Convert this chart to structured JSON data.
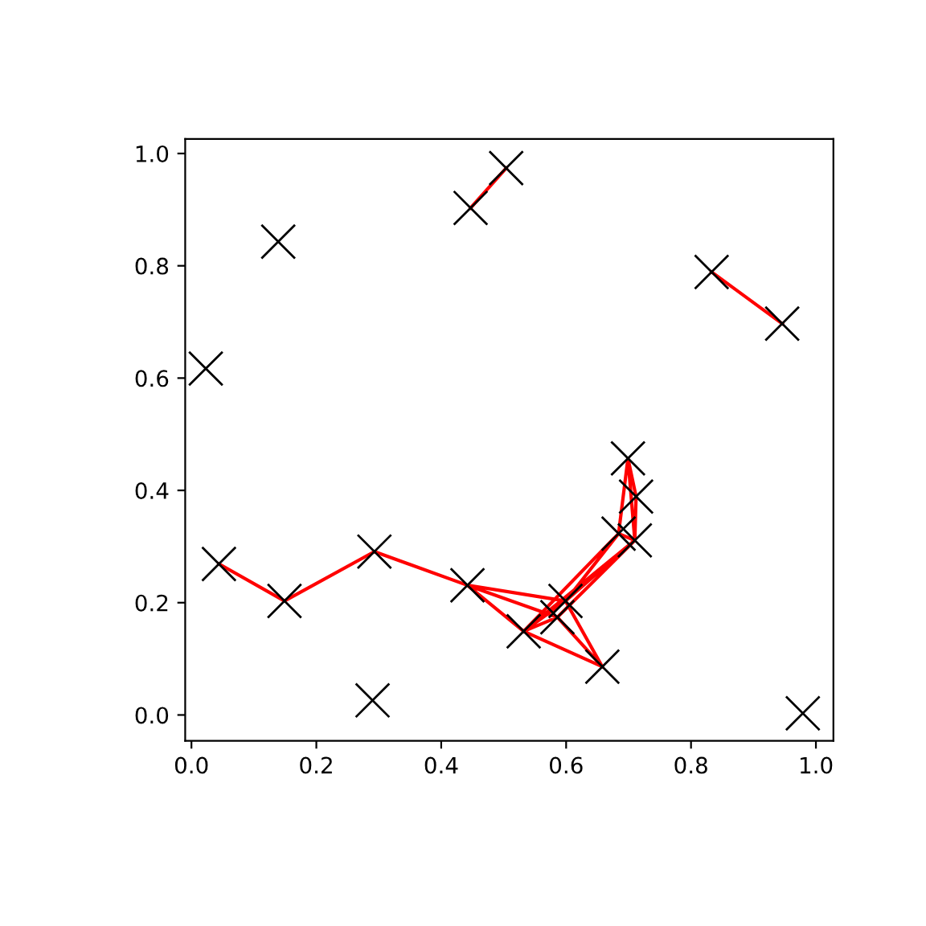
{
  "chart_data": {
    "type": "scatter",
    "xlim": [
      -0.01,
      1.028
    ],
    "ylim": [
      -0.046,
      1.026
    ],
    "xticks": [
      {
        "value": 0,
        "label": "0.0"
      },
      {
        "value": 0.2,
        "label": "0.2"
      },
      {
        "value": 0.4,
        "label": "0.4"
      },
      {
        "value": 0.6,
        "label": "0.6"
      },
      {
        "value": 0.8,
        "label": "0.8"
      },
      {
        "value": 1,
        "label": "1.0"
      }
    ],
    "yticks": [
      {
        "value": 0,
        "label": "0.0"
      },
      {
        "value": 0.2,
        "label": "0.2"
      },
      {
        "value": 0.4,
        "label": "0.4"
      },
      {
        "value": 0.6,
        "label": "0.6"
      },
      {
        "value": 0.8,
        "label": "0.8"
      },
      {
        "value": 1,
        "label": "1.0"
      }
    ],
    "grid": false,
    "legend": false,
    "series": [
      {
        "type": "line",
        "color": "#ff0000",
        "line_style": "solid",
        "x": [
          0.044,
          0.149,
          0.293,
          0.442,
          0.532,
          null,
          0.442,
          0.599,
          null,
          0.442,
          0.586,
          null,
          0.532,
          0.599,
          0.658,
          0.586,
          0.532,
          0.658,
          null,
          0.532,
          0.684,
          null,
          0.532,
          0.71,
          0.599,
          0.684,
          null,
          0.586,
          0.71,
          0.699,
          0.684,
          0.71,
          0.712,
          0.699,
          null,
          0.447,
          0.504,
          null,
          0.833,
          0.946
        ],
        "values": [
          0.269,
          0.203,
          0.291,
          0.231,
          0.149,
          null,
          0.231,
          0.203,
          null,
          0.231,
          0.174,
          null,
          0.149,
          0.203,
          0.086,
          0.174,
          0.149,
          0.086,
          null,
          0.149,
          0.323,
          null,
          0.149,
          0.311,
          0.203,
          0.323,
          null,
          0.174,
          0.311,
          0.457,
          0.323,
          0.311,
          0.389,
          0.457,
          null,
          0.903,
          0.974,
          null,
          0.789,
          0.697
        ]
      },
      {
        "color": "#000000",
        "marker": "cross",
        "x": [
          0.044,
          0.149,
          0.293,
          0.442,
          0.532,
          0.599,
          0.586,
          0.658,
          0.699,
          0.712,
          0.684,
          0.71,
          0.139,
          0.023,
          0.447,
          0.504,
          0.833,
          0.946,
          0.29,
          0.979
        ],
        "values": [
          0.269,
          0.203,
          0.291,
          0.231,
          0.149,
          0.203,
          0.174,
          0.086,
          0.457,
          0.389,
          0.323,
          0.311,
          0.843,
          0.617,
          0.903,
          0.974,
          0.789,
          0.697,
          0.026,
          0.003
        ]
      }
    ]
  }
}
